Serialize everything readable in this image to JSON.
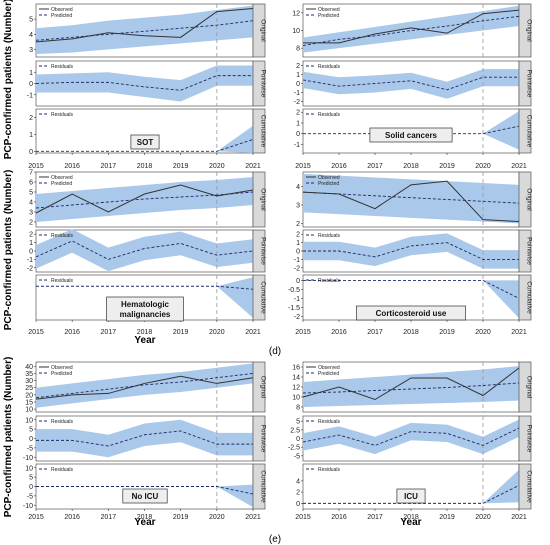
{
  "labels": {
    "y_axis": "PCP-confirmed patients (Number)",
    "x_axis": "Year",
    "strip_original": "Original",
    "strip_pointwise": "Pointwise",
    "strip_cumulative": "Cumulative",
    "legend_observed": "Observed",
    "legend_predicted": "Predicted",
    "legend_residuals": "Residuals",
    "caption_d": "(d)",
    "caption_e": "(e)"
  },
  "colors": {
    "band": "#a9c8ea",
    "strip_bg": "#d9d9d9",
    "observed": "#333333",
    "predicted": "#1f2a6b",
    "intervention": "#999999"
  },
  "chart_data": [
    {
      "type": "line",
      "label": "SOT",
      "x": [
        2015,
        2016,
        2017,
        2018,
        2019,
        2020,
        2021
      ],
      "intervention_x": 2020,
      "original": {
        "ylim": [
          2.5,
          6
        ],
        "ticks": [
          3,
          4,
          5
        ],
        "observed": [
          3.5,
          3.7,
          4.1,
          3.9,
          3.8,
          5.5,
          5.7
        ],
        "predicted": [
          3.6,
          3.8,
          4.0,
          4.2,
          4.4,
          4.6,
          4.9
        ],
        "lower": [
          2.7,
          2.8,
          3.0,
          3.2,
          3.4,
          3.6,
          3.8
        ],
        "upper": [
          4.4,
          4.6,
          4.9,
          5.1,
          5.3,
          5.6,
          5.9
        ]
      },
      "pointwise": {
        "ylim": [
          -2,
          2
        ],
        "ticks": [
          -1,
          0,
          1
        ],
        "mean": [
          0,
          0.1,
          0.1,
          -0.3,
          -0.6,
          0.7,
          0.7
        ],
        "lower": [
          -0.8,
          -0.8,
          -0.8,
          -1.2,
          -1.6,
          -0.2,
          -0.2
        ],
        "upper": [
          0.8,
          0.9,
          1.0,
          0.6,
          0.3,
          1.6,
          1.6
        ]
      },
      "cumulative": {
        "ylim": [
          -0.1,
          2.5
        ],
        "ticks": [
          0,
          1,
          2
        ],
        "mean": [
          0,
          0,
          0,
          0,
          0,
          0,
          0.7
        ],
        "lower": [
          0,
          0,
          0,
          0,
          0,
          0,
          -0.1
        ],
        "upper": [
          0,
          0,
          0,
          0,
          0,
          0,
          1.5
        ]
      }
    },
    {
      "type": "line",
      "label": "Solid cancers",
      "x": [
        2015,
        2016,
        2017,
        2018,
        2019,
        2020,
        2021
      ],
      "intervention_x": 2020,
      "original": {
        "ylim": [
          7,
          13
        ],
        "ticks": [
          8,
          10,
          12
        ],
        "observed": [
          8.6,
          8.6,
          9.6,
          10.3,
          9.7,
          11.9,
          12.3
        ],
        "predicted": [
          8.3,
          9.0,
          9.4,
          10.0,
          10.5,
          11.1,
          11.6
        ],
        "lower": [
          7.5,
          8.0,
          8.5,
          9.0,
          9.5,
          10.0,
          10.5
        ],
        "upper": [
          9.2,
          9.8,
          10.4,
          11.0,
          11.6,
          12.2,
          12.8
        ]
      },
      "pointwise": {
        "ylim": [
          -2.5,
          2.5
        ],
        "ticks": [
          -2,
          -1,
          0,
          1,
          2
        ],
        "mean": [
          0.4,
          -0.3,
          0.0,
          0.3,
          -0.7,
          0.7,
          0.7
        ],
        "lower": [
          -0.5,
          -1.2,
          -1.0,
          -0.6,
          -1.7,
          -0.3,
          -0.3
        ],
        "upper": [
          1.3,
          0.7,
          0.9,
          1.2,
          0.2,
          1.6,
          1.6
        ]
      },
      "cumulative": {
        "ylim": [
          -1.8,
          2.3
        ],
        "ticks": [
          -1,
          0,
          1,
          2
        ],
        "mean": [
          0,
          0,
          0,
          0,
          0,
          0,
          0.7
        ],
        "lower": [
          0,
          0,
          0,
          0,
          0,
          0,
          -1.5
        ],
        "upper": [
          0,
          0,
          0,
          0,
          0,
          0,
          2.1
        ]
      }
    },
    {
      "type": "line",
      "label": "Hematologic\nmalignancies",
      "x": [
        2015,
        2016,
        2017,
        2018,
        2019,
        2020,
        2021
      ],
      "intervention_x": 2020,
      "original": {
        "ylim": [
          1.5,
          7
        ],
        "ticks": [
          2,
          3,
          4,
          5,
          6,
          7
        ],
        "observed": [
          2.9,
          4.8,
          3.0,
          4.8,
          5.7,
          4.6,
          5.2
        ],
        "predicted": [
          3.4,
          3.7,
          4.0,
          4.3,
          4.5,
          4.7,
          5.0
        ],
        "lower": [
          2.0,
          2.3,
          2.6,
          2.9,
          3.2,
          3.4,
          3.7
        ],
        "upper": [
          4.8,
          5.1,
          5.4,
          5.7,
          6.0,
          6.2,
          6.5
        ]
      },
      "pointwise": {
        "ylim": [
          -2.5,
          2.5
        ],
        "ticks": [
          -2,
          -1,
          0,
          1,
          2
        ],
        "mean": [
          -0.7,
          1.2,
          -1.0,
          0.3,
          0.9,
          -0.5,
          0.0
        ],
        "lower": [
          -2.1,
          -0.2,
          -2.4,
          -1.1,
          -0.5,
          -1.9,
          -1.4
        ],
        "upper": [
          0.7,
          2.6,
          0.4,
          1.7,
          2.3,
          0.9,
          1.4
        ]
      },
      "cumulative": {
        "ylim": [
          -4.5,
          1.5
        ],
        "ticks": [],
        "mean": [
          0,
          0,
          0,
          0,
          0,
          0,
          -0.4
        ],
        "lower": [
          0,
          0,
          0,
          0,
          0,
          0,
          -4.2
        ],
        "upper": [
          0,
          0,
          0,
          0,
          0,
          0,
          1.2
        ]
      }
    },
    {
      "type": "line",
      "label": "Corticosteroid use",
      "x": [
        2015,
        2016,
        2017,
        2018,
        2019,
        2020,
        2021
      ],
      "intervention_x": 2020,
      "original": {
        "ylim": [
          1.8,
          4.8
        ],
        "ticks": [
          2,
          3,
          4
        ],
        "observed": [
          3.7,
          3.6,
          2.8,
          4.1,
          4.3,
          2.2,
          2.1
        ],
        "predicted": [
          3.7,
          3.6,
          3.5,
          3.4,
          3.3,
          3.2,
          3.1
        ],
        "lower": [
          2.6,
          2.5,
          2.4,
          2.3,
          2.2,
          2.1,
          2.0
        ],
        "upper": [
          4.7,
          4.6,
          4.5,
          4.4,
          4.3,
          4.2,
          4.1
        ]
      },
      "pointwise": {
        "ylim": [
          -2.5,
          2.5
        ],
        "ticks": [
          -2,
          -1,
          0,
          1,
          2
        ],
        "mean": [
          0.0,
          0.0,
          -0.7,
          0.6,
          1.0,
          -1.0,
          -1.0
        ],
        "lower": [
          -1.1,
          -1.1,
          -1.8,
          -0.5,
          -0.1,
          -2.1,
          -2.1
        ],
        "upper": [
          1.1,
          1.1,
          0.4,
          1.7,
          2.1,
          0.1,
          0.1
        ]
      },
      "cumulative": {
        "ylim": [
          -2.2,
          0.3
        ],
        "ticks": [
          -2.0,
          -1.5,
          -1.0,
          -0.5,
          0.0
        ],
        "mean": [
          0,
          0,
          0,
          0,
          0,
          0,
          -1.0
        ],
        "lower": [
          0,
          0,
          0,
          0,
          0,
          0,
          -2.1
        ],
        "upper": [
          0,
          0,
          0,
          0,
          0,
          0,
          0.0
        ]
      }
    },
    {
      "type": "line",
      "label": "No ICU",
      "x": [
        2015,
        2016,
        2017,
        2018,
        2019,
        2020,
        2021
      ],
      "intervention_x": 2020,
      "original": {
        "ylim": [
          8,
          43
        ],
        "ticks": [
          10,
          15,
          20,
          25,
          30,
          35,
          40
        ],
        "observed": [
          17,
          20,
          21,
          28,
          33,
          28,
          32
        ],
        "predicted": [
          18,
          21,
          24,
          27,
          29,
          32,
          35
        ],
        "lower": [
          11,
          14,
          17,
          20,
          22,
          25,
          28
        ],
        "upper": [
          25,
          28,
          31,
          34,
          36,
          39,
          42
        ]
      },
      "pointwise": {
        "ylim": [
          -12,
          12
        ],
        "ticks": [
          -10,
          -5,
          0,
          5,
          10
        ],
        "mean": [
          -1,
          -1,
          -4,
          2,
          4,
          -3,
          -3
        ],
        "lower": [
          -7,
          -7,
          -10,
          -4,
          -2,
          -9,
          -9
        ],
        "upper": [
          5,
          5,
          2,
          8,
          10,
          3,
          3
        ]
      },
      "cumulative": {
        "ylim": [
          -12,
          12
        ],
        "ticks": [
          -10,
          -5,
          0,
          5,
          10
        ],
        "mean": [
          0,
          0,
          0,
          0,
          0,
          0,
          -4
        ],
        "lower": [
          0,
          0,
          0,
          0,
          0,
          0,
          -11
        ],
        "upper": [
          0,
          0,
          0,
          0,
          0,
          0,
          1
        ]
      }
    },
    {
      "type": "line",
      "label": "ICU",
      "x": [
        2015,
        2016,
        2017,
        2018,
        2019,
        2020,
        2021
      ],
      "intervention_x": 2020,
      "original": {
        "ylim": [
          7,
          17
        ],
        "ticks": [
          8,
          10,
          12,
          14,
          16
        ],
        "observed": [
          10,
          12,
          9.5,
          13.8,
          13.8,
          10.3,
          15.8
        ],
        "predicted": [
          10.8,
          11.0,
          11.3,
          11.6,
          11.9,
          12.3,
          12.8
        ],
        "lower": [
          8.0,
          8.2,
          8.4,
          8.6,
          8.8,
          9.0,
          9.3
        ],
        "upper": [
          13.0,
          13.5,
          14.0,
          14.5,
          15.0,
          15.5,
          16.2
        ]
      },
      "pointwise": {
        "ylim": [
          -6.5,
          6.5
        ],
        "ticks": [
          -5.0,
          -2.5,
          0.0,
          2.5,
          5.0
        ],
        "mean": [
          -1.0,
          1.0,
          -2.0,
          2.0,
          1.5,
          -2.0,
          3.0
        ],
        "lower": [
          -3.5,
          -1.5,
          -4.5,
          -0.5,
          -1.0,
          -4.5,
          0.5
        ],
        "upper": [
          1.5,
          3.5,
          0.5,
          4.5,
          4.0,
          0.5,
          5.5
        ]
      },
      "cumulative": {
        "ylim": [
          -1,
          7
        ],
        "ticks": [
          0,
          2,
          4
        ],
        "mean": [
          0,
          0,
          0,
          0,
          0,
          0,
          3.2
        ],
        "lower": [
          0,
          0,
          0,
          0,
          0,
          0,
          0.2
        ],
        "upper": [
          0,
          0,
          0,
          0,
          0,
          0,
          6.0
        ]
      }
    }
  ]
}
